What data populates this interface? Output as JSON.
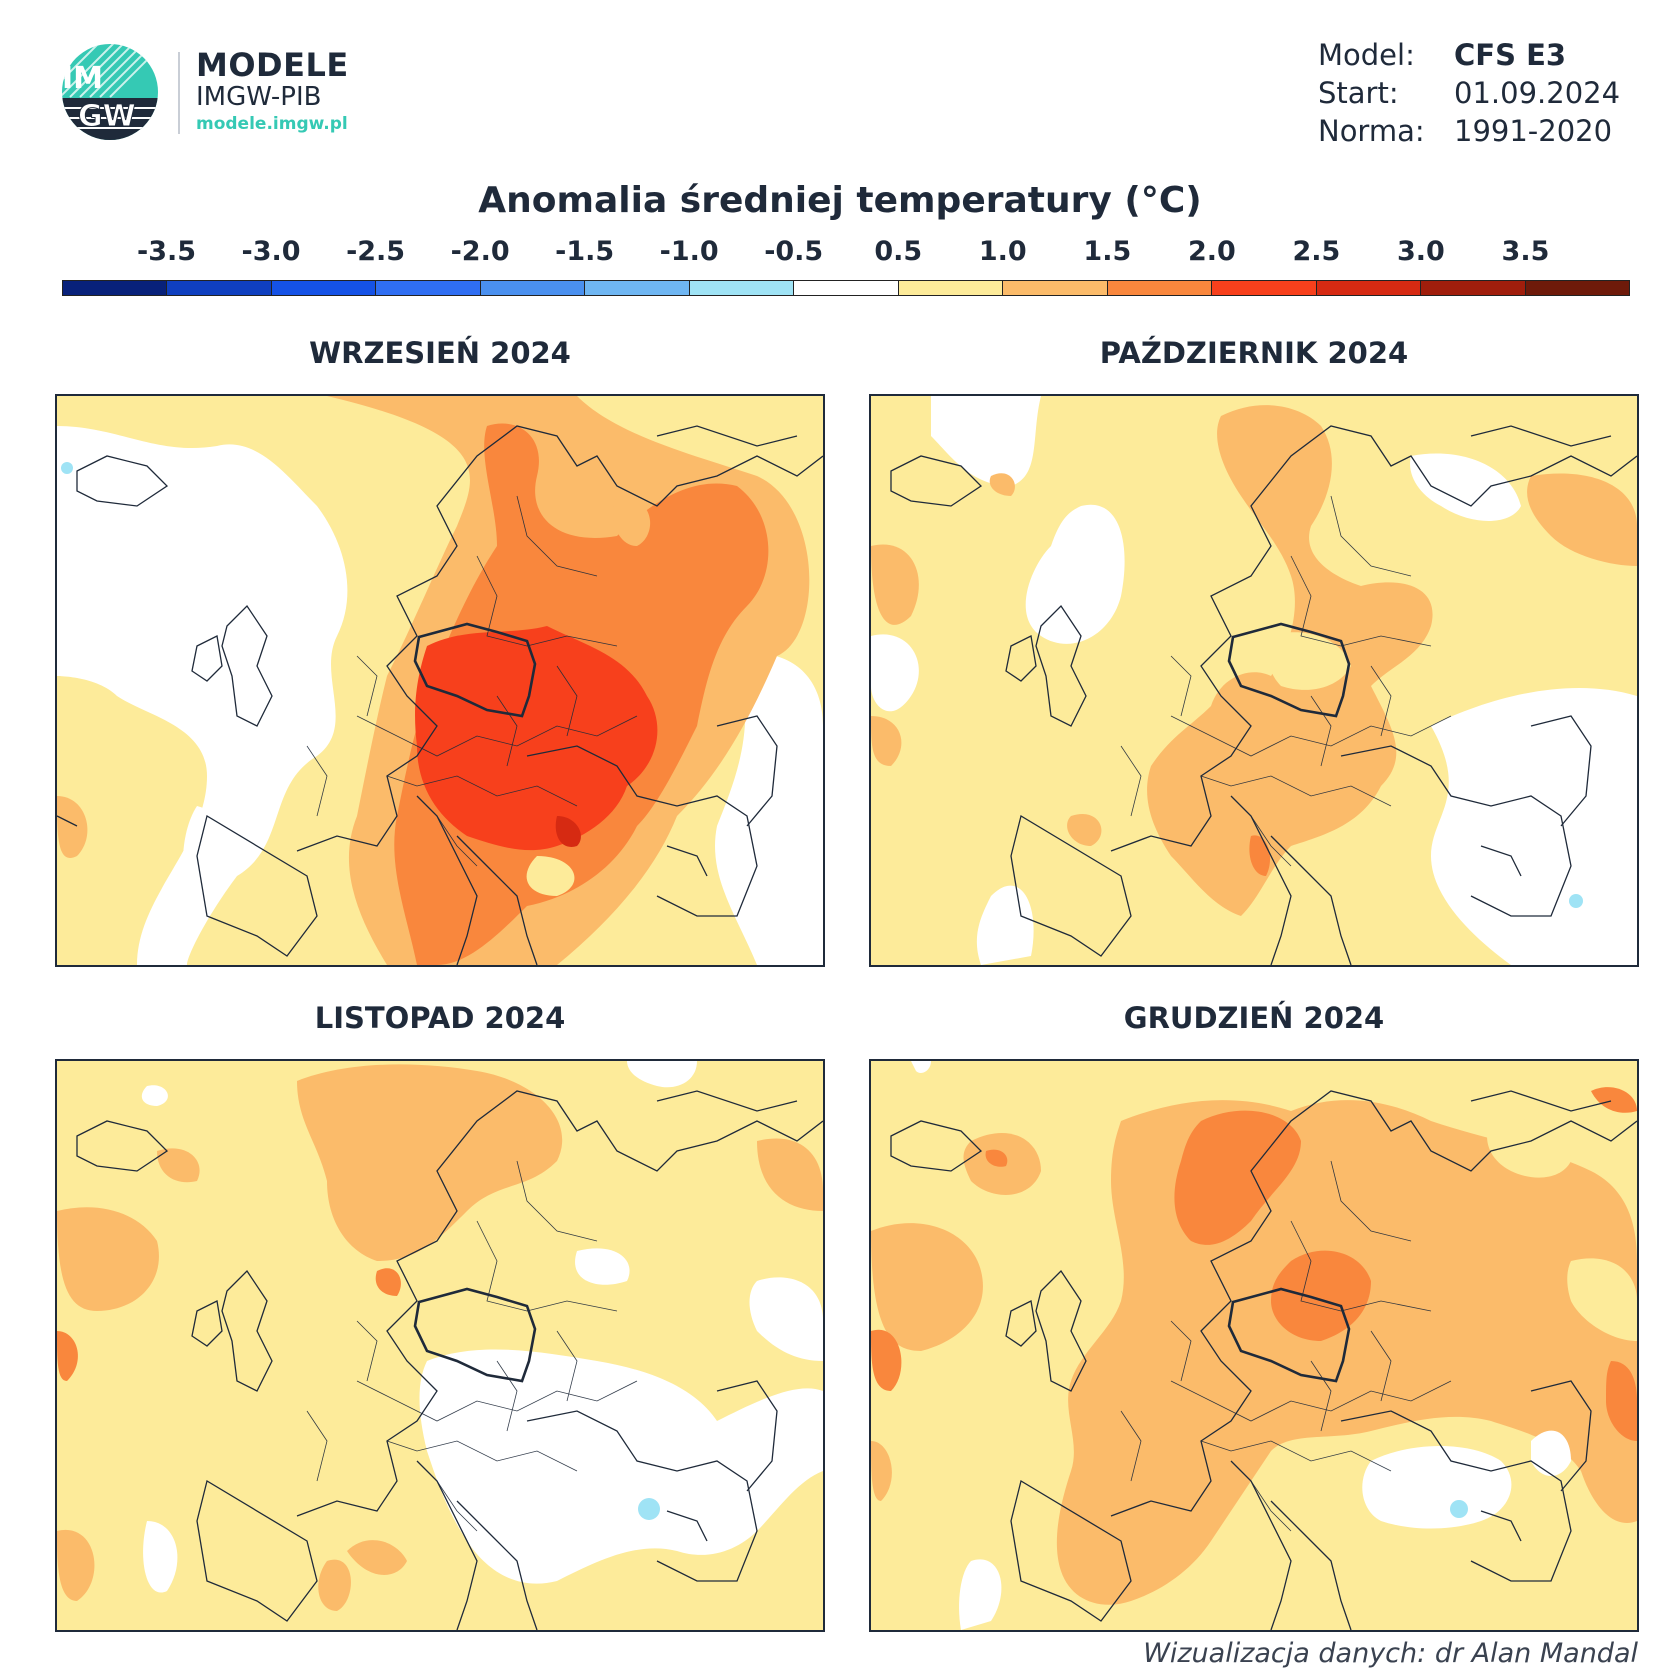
{
  "logo": {
    "mark_top": "IM",
    "mark_bottom": "GW",
    "title": "MODELE",
    "subtitle": "IMGW-PIB",
    "url": "modele.imgw.pl",
    "accent": "#35c9b4",
    "navy": "#1f2a3a"
  },
  "meta": {
    "model_label": "Model:",
    "model_value": "CFS E3",
    "start_label": "Start:",
    "start_value": "01.09.2024",
    "norm_label": "Norma:",
    "norm_value": "1991-2020"
  },
  "title": "Anomalia średniej temperatury (°C)",
  "legend": {
    "ticks": [
      "-3.5",
      "-3.0",
      "-2.5",
      "-2.0",
      "-1.5",
      "-1.0",
      "-0.5",
      "0.5",
      "1.0",
      "1.5",
      "2.0",
      "2.5",
      "3.0",
      "3.5"
    ],
    "colors": [
      "#08217a",
      "#0f3fbf",
      "#1552e6",
      "#2f6ef2",
      "#4a90ef",
      "#6fb6f2",
      "#9fe3f5",
      "#ffffff",
      "#fdeb9a",
      "#fbbb6a",
      "#f9873d",
      "#f7401c",
      "#d62a12",
      "#a01e0c",
      "#6e1a0a"
    ]
  },
  "panels": [
    {
      "title": "WRZESIEŃ 2024",
      "map": "september"
    },
    {
      "title": "PAŹDZIERNIK 2024",
      "map": "october"
    },
    {
      "title": "LISTOPAD 2024",
      "map": "november"
    },
    {
      "title": "GRUDZIEŃ 2024",
      "map": "december"
    }
  ],
  "footer": "Wizualizacja danych: dr Alan Mandal"
}
